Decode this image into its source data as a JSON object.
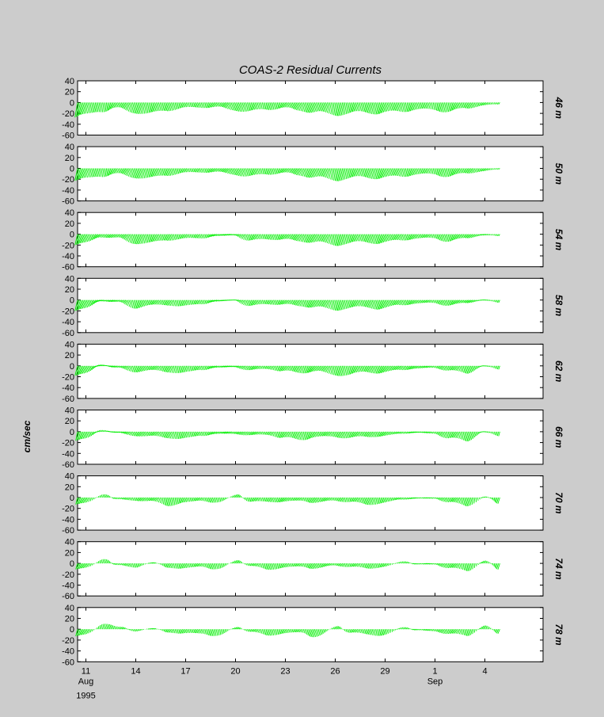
{
  "chart_data": {
    "type": "stick_plot",
    "title": "COAS-2  Residual Currents",
    "ylabel": "cm/sec",
    "ylim": [
      -60,
      40
    ],
    "yticks": [
      40,
      20,
      0,
      -20,
      -40,
      -60
    ],
    "x_start_day": 10.5,
    "x_end_day": 40,
    "xticks": [
      {
        "day": 11,
        "label": "11"
      },
      {
        "day": 14,
        "label": "14"
      },
      {
        "day": 17,
        "label": "17"
      },
      {
        "day": 20,
        "label": "20"
      },
      {
        "day": 23,
        "label": "23"
      },
      {
        "day": 26,
        "label": "26"
      },
      {
        "day": 29,
        "label": "29"
      },
      {
        "day": 32,
        "label": "1"
      },
      {
        "day": 35,
        "label": "4"
      }
    ],
    "month_labels": [
      {
        "day": 11,
        "label": "Aug"
      },
      {
        "day": 32,
        "label": "Sep"
      }
    ],
    "year_label": "1995",
    "stick_color": "#00ee00",
    "series": [
      {
        "name": "46 m",
        "days": [
          11,
          12,
          13,
          14,
          15,
          16,
          17,
          18,
          19,
          20,
          21,
          22,
          23,
          24,
          25,
          26,
          27,
          28,
          29,
          30,
          31,
          32,
          33,
          34,
          35,
          35.9
        ],
        "u": [
          -4,
          -2,
          -3,
          -4,
          -3,
          -3,
          -2,
          -2,
          -3,
          -4,
          -3,
          -2,
          -3,
          -4,
          -4,
          -3,
          -3,
          -3,
          -4,
          -3,
          -3,
          -2,
          -3,
          -3,
          -2,
          -1
        ],
        "v": [
          -30,
          -18,
          -12,
          -20,
          -25,
          -16,
          -12,
          -10,
          -10,
          -15,
          -20,
          -14,
          -12,
          -16,
          -22,
          -25,
          -24,
          -20,
          -24,
          -18,
          -16,
          -15,
          -20,
          -12,
          -6,
          -4
        ]
      },
      {
        "name": "50 m",
        "days": [
          11,
          12,
          13,
          14,
          15,
          16,
          17,
          18,
          19,
          20,
          21,
          22,
          23,
          24,
          25,
          26,
          27,
          28,
          29,
          30,
          31,
          32,
          33,
          34,
          35,
          35.9
        ],
        "u": [
          -4,
          -2,
          -3,
          -4,
          -3,
          -3,
          -2,
          -2,
          -3,
          -4,
          -3,
          -2,
          -3,
          -4,
          -4,
          -3,
          -3,
          -3,
          -4,
          -3,
          -3,
          -2,
          -3,
          -3,
          -2,
          -1
        ],
        "v": [
          -25,
          -16,
          -12,
          -18,
          -22,
          -14,
          -10,
          -8,
          -8,
          -12,
          -18,
          -12,
          -10,
          -14,
          -20,
          -24,
          -22,
          -18,
          -22,
          -16,
          -14,
          -12,
          -18,
          -10,
          -6,
          -2
        ]
      },
      {
        "name": "54 m",
        "days": [
          11,
          12,
          13,
          14,
          15,
          16,
          17,
          18,
          19,
          20,
          21,
          22,
          23,
          24,
          25,
          26,
          27,
          28,
          29,
          30,
          31,
          32,
          33,
          34,
          35,
          35.9
        ],
        "u": [
          -4,
          -3,
          -3,
          -4,
          -3,
          -3,
          -2,
          -2,
          -3,
          -3,
          -3,
          -2,
          -3,
          -4,
          -4,
          -3,
          -3,
          -3,
          -4,
          -3,
          -3,
          -2,
          -3,
          -3,
          -2,
          -1
        ],
        "v": [
          -22,
          -6,
          -8,
          -18,
          -20,
          -12,
          -10,
          -8,
          -4,
          -2,
          -15,
          -10,
          -12,
          -14,
          -18,
          -22,
          -20,
          -16,
          -20,
          -12,
          -10,
          -8,
          -16,
          -8,
          -2,
          -4
        ]
      },
      {
        "name": "58 m",
        "days": [
          11,
          12,
          13,
          14,
          15,
          16,
          17,
          18,
          19,
          20,
          21,
          22,
          23,
          24,
          25,
          26,
          27,
          28,
          29,
          30,
          31,
          32,
          33,
          34,
          35,
          35.9
        ],
        "u": [
          -4,
          -3,
          -3,
          -3,
          -3,
          -3,
          -2,
          -2,
          -3,
          -3,
          -3,
          -2,
          -3,
          -3,
          -4,
          -3,
          -3,
          -3,
          -4,
          -3,
          -3,
          -2,
          -3,
          -3,
          -2,
          -1
        ],
        "v": [
          -22,
          -2,
          -4,
          -16,
          -12,
          -10,
          -14,
          -8,
          -3,
          0,
          -14,
          -8,
          -10,
          -12,
          -16,
          -20,
          -18,
          -14,
          -20,
          -10,
          -8,
          -6,
          -12,
          -6,
          0,
          -6
        ]
      },
      {
        "name": "62 m",
        "days": [
          11,
          12,
          13,
          14,
          15,
          16,
          17,
          18,
          19,
          20,
          21,
          22,
          23,
          24,
          25,
          26,
          27,
          28,
          29,
          30,
          31,
          32,
          33,
          34,
          35,
          35.9
        ],
        "u": [
          -4,
          -3,
          -3,
          -3,
          -3,
          -3,
          -2,
          -2,
          -3,
          -3,
          -3,
          -2,
          -3,
          -3,
          -4,
          -3,
          -3,
          -3,
          -4,
          -3,
          -3,
          -2,
          -3,
          -3,
          -2,
          -1
        ],
        "v": [
          -20,
          2,
          -4,
          -12,
          -10,
          -12,
          -16,
          -8,
          -4,
          -2,
          -10,
          -6,
          -12,
          -14,
          -12,
          -18,
          -20,
          -12,
          -16,
          -8,
          -6,
          -4,
          -10,
          -16,
          0,
          -8
        ]
      },
      {
        "name": "66 m",
        "days": [
          11,
          12,
          13,
          14,
          15,
          16,
          17,
          18,
          19,
          20,
          21,
          22,
          23,
          24,
          25,
          26,
          27,
          28,
          29,
          30,
          31,
          32,
          33,
          34,
          35,
          35.9
        ],
        "u": [
          -3,
          -2,
          -3,
          -3,
          -3,
          -3,
          -2,
          -2,
          -3,
          -3,
          -3,
          -2,
          -3,
          -3,
          -3,
          -3,
          -3,
          -3,
          -3,
          -2,
          -3,
          -2,
          -3,
          -3,
          -2,
          -1
        ],
        "v": [
          -18,
          3,
          -2,
          -8,
          -10,
          -12,
          -16,
          -8,
          -5,
          -4,
          -8,
          -6,
          -14,
          -16,
          -12,
          -10,
          -14,
          -10,
          -10,
          -4,
          -2,
          -4,
          -14,
          -20,
          0,
          -10
        ]
      },
      {
        "name": "70 m",
        "days": [
          11,
          12,
          13,
          14,
          15,
          16,
          17,
          18,
          19,
          20,
          21,
          22,
          23,
          24,
          25,
          26,
          27,
          28,
          29,
          30,
          31,
          32,
          33,
          34,
          35,
          35.9
        ],
        "u": [
          -3,
          2,
          -2,
          -2,
          -3,
          -2,
          -2,
          -2,
          -2,
          2,
          -2,
          -2,
          -3,
          -2,
          -3,
          -2,
          -2,
          -3,
          -2,
          -2,
          -2,
          -2,
          -3,
          -3,
          2,
          -2
        ],
        "v": [
          -14,
          6,
          -4,
          -6,
          -8,
          -16,
          -12,
          -6,
          -12,
          6,
          -10,
          -8,
          -10,
          -6,
          -12,
          -6,
          -10,
          -14,
          -12,
          -4,
          -2,
          -2,
          -10,
          -18,
          2,
          -14
        ]
      },
      {
        "name": "74 m",
        "days": [
          11,
          12,
          13,
          14,
          15,
          16,
          17,
          18,
          19,
          20,
          21,
          22,
          23,
          24,
          25,
          26,
          27,
          28,
          29,
          30,
          31,
          32,
          33,
          34,
          35,
          35.9
        ],
        "u": [
          -3,
          2,
          -2,
          -2,
          2,
          -2,
          -2,
          -2,
          -2,
          2,
          -2,
          -2,
          -2,
          -2,
          -3,
          -2,
          -2,
          -2,
          -2,
          2,
          -2,
          -2,
          -3,
          -2,
          2,
          -2
        ],
        "v": [
          -12,
          8,
          -4,
          -8,
          2,
          -8,
          -12,
          -6,
          -14,
          6,
          -6,
          -12,
          -10,
          -6,
          -12,
          -4,
          -8,
          -10,
          -8,
          4,
          -2,
          -2,
          -10,
          -16,
          6,
          -14
        ]
      },
      {
        "name": "78 m",
        "days": [
          11,
          12,
          13,
          14,
          15,
          16,
          17,
          18,
          19,
          20,
          21,
          22,
          23,
          24,
          25,
          26,
          27,
          28,
          29,
          30,
          31,
          32,
          33,
          34,
          35,
          35.9
        ],
        "u": [
          -3,
          2,
          2,
          -2,
          2,
          -2,
          -2,
          -2,
          -2,
          2,
          -2,
          -2,
          -2,
          -2,
          -3,
          2,
          -2,
          -2,
          -2,
          2,
          -2,
          -2,
          -3,
          -2,
          2,
          -2
        ],
        "v": [
          -14,
          10,
          6,
          -4,
          2,
          -6,
          -10,
          -8,
          -16,
          4,
          -6,
          -12,
          -10,
          -6,
          -18,
          6,
          -8,
          -10,
          -14,
          4,
          -2,
          -4,
          -10,
          -14,
          8,
          -10
        ]
      }
    ]
  }
}
